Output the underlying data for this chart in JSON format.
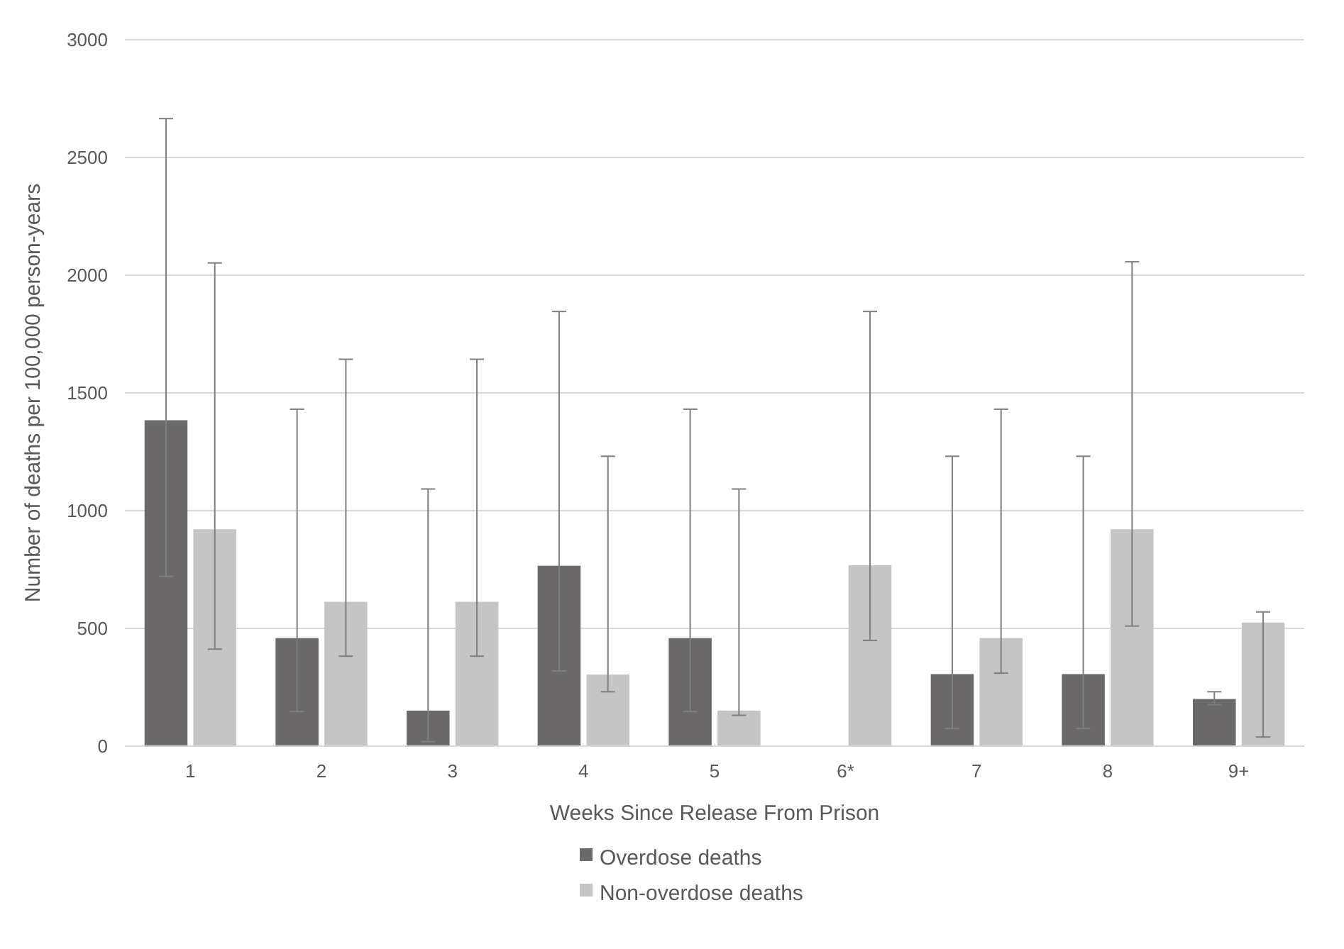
{
  "chart_data": {
    "type": "bar",
    "xlabel": "Weeks Since Release From Prison",
    "ylabel": "Number of deaths per 100,000 person-years",
    "categories": [
      "1",
      "2",
      "3",
      "4",
      "5",
      "6*",
      "7",
      "8",
      "9+"
    ],
    "series": [
      {
        "name": "Overdose deaths",
        "color": "#6b6969",
        "values": [
          1384,
          459,
          151,
          766,
          459,
          null,
          306,
          306,
          200
        ],
        "errors": [
          [
            721,
            2665
          ],
          [
            147,
            1431
          ],
          [
            19,
            1092
          ],
          [
            319,
            1846
          ],
          [
            147,
            1431
          ],
          null,
          [
            75,
            1231
          ],
          [
            75,
            1231
          ],
          [
            176,
            231
          ]
        ]
      },
      {
        "name": "Non-overdose deaths",
        "color": "#c5c5c5",
        "values": [
          921,
          613,
          613,
          304,
          151,
          768,
          459,
          921,
          525
        ],
        "errors": [
          [
            412,
            2052
          ],
          [
            382,
            1643
          ],
          [
            382,
            1643
          ],
          [
            231,
            1231
          ],
          [
            131,
            1092
          ],
          [
            449,
            1846
          ],
          [
            310,
            1431
          ],
          [
            510,
            2057
          ],
          [
            39,
            570
          ]
        ]
      }
    ],
    "ylim": [
      0,
      3000
    ],
    "yticks": [
      0,
      500,
      1000,
      1500,
      2000,
      2500,
      3000
    ],
    "grid": "y",
    "legend": "bottom"
  }
}
